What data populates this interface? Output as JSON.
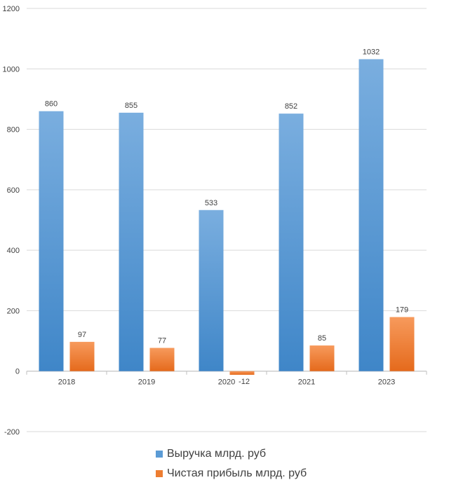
{
  "chart_data": {
    "type": "bar",
    "categories": [
      "2018",
      "2019",
      "2020",
      "2021",
      "2023"
    ],
    "series": [
      {
        "name": "Выручка млрд. руб",
        "values": [
          860,
          855,
          533,
          852,
          1032
        ],
        "color": "#5B9BD5"
      },
      {
        "name": "Чистая прибыль млрд. руб",
        "values": [
          97,
          77,
          -12,
          85,
          179
        ],
        "color": "#ED7D31"
      }
    ],
    "y_ticks": [
      "-200",
      "0",
      "200",
      "400",
      "600",
      "800",
      "1000",
      "1200"
    ],
    "ylim": [
      -200,
      1200
    ],
    "grid": true,
    "legend_position": "bottom"
  }
}
